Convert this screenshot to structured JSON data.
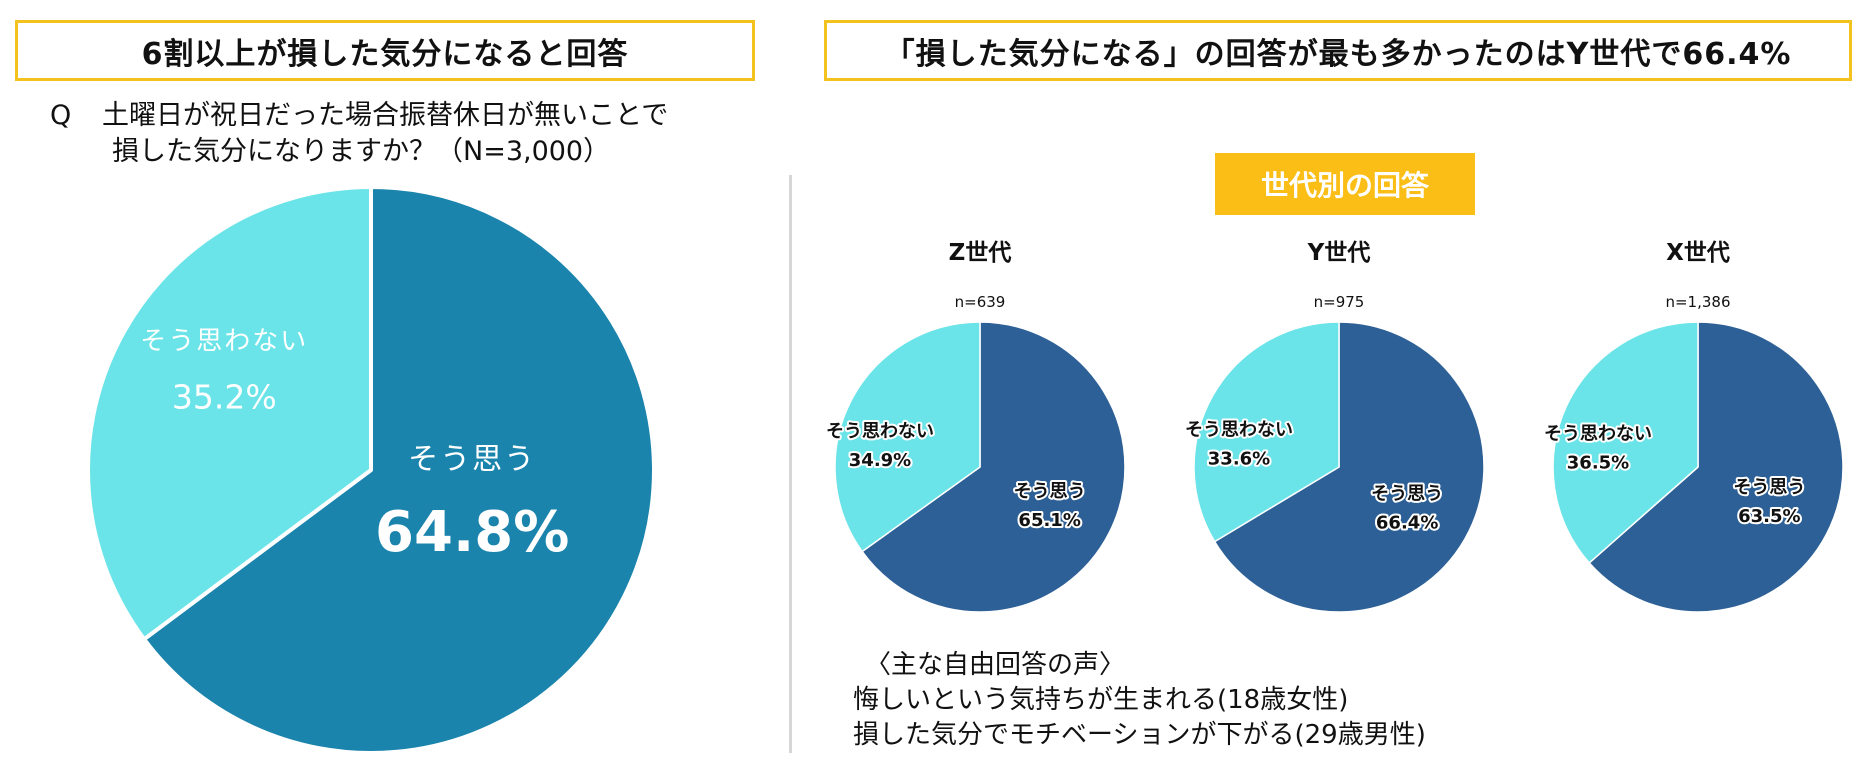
{
  "left_title": "6割以上が損した気分になると回答",
  "right_title": "「損した気分になる」の回答が最も多かったのはY世代で66.4%",
  "question": {
    "mark": "Q",
    "line1": "土曜日が祝日だった場合振替休日が無いことで",
    "line2": "損した気分になりますか？（N=3,000）"
  },
  "generation_badge": "世代別の回答",
  "free_answers": {
    "heading": "〈主な自由回答の声〉",
    "lines": [
      "悔しいという気持ちが生まれる(18歳女性)",
      "損した気分でモチベーションが下がる(29歳男性)"
    ]
  },
  "colors": {
    "accent_border": "#f4c21f",
    "badge": "#fabe16",
    "overall_yes": "#1a84ad",
    "gen_yes": "#2d6096",
    "no": "#6ae4e8"
  },
  "chart_data": [
    {
      "type": "pie",
      "title": "",
      "n_label": "",
      "categories": [
        "そう思う",
        "そう思わない"
      ],
      "values": [
        64.8,
        35.2
      ],
      "value_labels": [
        "64.8%",
        "35.2%"
      ],
      "colors": [
        "#1a84ad",
        "#6ae4e8"
      ]
    },
    {
      "type": "pie",
      "title": "Z世代",
      "n_label": "n=639",
      "categories": [
        "そう思う",
        "そう思わない"
      ],
      "values": [
        65.1,
        34.9
      ],
      "value_labels": [
        "65.1%",
        "34.9%"
      ],
      "colors": [
        "#2d6096",
        "#6ae4e8"
      ]
    },
    {
      "type": "pie",
      "title": "Y世代",
      "n_label": "n=975",
      "categories": [
        "そう思う",
        "そう思わない"
      ],
      "values": [
        66.4,
        33.6
      ],
      "value_labels": [
        "66.4%",
        "33.6%"
      ],
      "colors": [
        "#2d6096",
        "#6ae4e8"
      ]
    },
    {
      "type": "pie",
      "title": "X世代",
      "n_label": "n=1,386",
      "categories": [
        "そう思う",
        "そう思わない"
      ],
      "values": [
        63.5,
        36.5
      ],
      "value_labels": [
        "63.5%",
        "36.5%"
      ],
      "colors": [
        "#2d6096",
        "#6ae4e8"
      ]
    }
  ]
}
